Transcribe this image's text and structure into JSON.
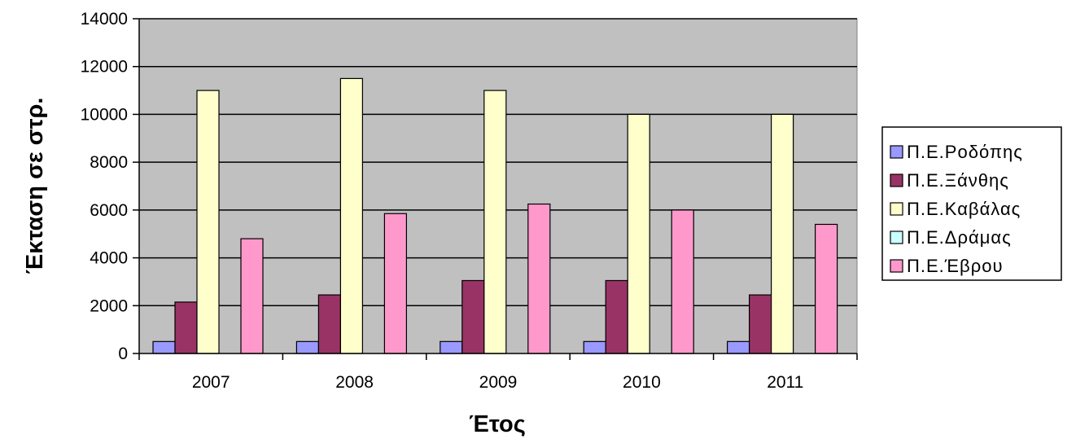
{
  "chart_data": {
    "type": "bar",
    "title": "",
    "xlabel": "Έτος",
    "ylabel": "Έκταση σε στρ.",
    "categories": [
      "2007",
      "2008",
      "2009",
      "2010",
      "2011"
    ],
    "ylim": [
      0,
      14000
    ],
    "yticks": [
      "0",
      "2000",
      "4000",
      "6000",
      "8000",
      "10000",
      "12000",
      "14000"
    ],
    "grid": true,
    "legend_position": "right",
    "series": [
      {
        "name": "Π.Ε.Ροδόπης",
        "color": "#9999ff",
        "values": [
          500,
          500,
          500,
          500,
          500
        ]
      },
      {
        "name": "Π.Ε.Ξάνθης",
        "color": "#993366",
        "values": [
          2150,
          2450,
          3050,
          3050,
          2450
        ]
      },
      {
        "name": "Π.Ε.Καβάλας",
        "color": "#ffffcc",
        "values": [
          11000,
          11500,
          11000,
          10000,
          10000
        ]
      },
      {
        "name": "Π.Ε.Δράμας",
        "color": "#ccffff",
        "values": [
          0,
          0,
          0,
          0,
          0
        ]
      },
      {
        "name": "Π.Ε.Έβρου",
        "color": "#ff99cc",
        "values": [
          4800,
          5850,
          6250,
          6000,
          5400
        ]
      }
    ],
    "plot_background": "#c0c0c0"
  }
}
